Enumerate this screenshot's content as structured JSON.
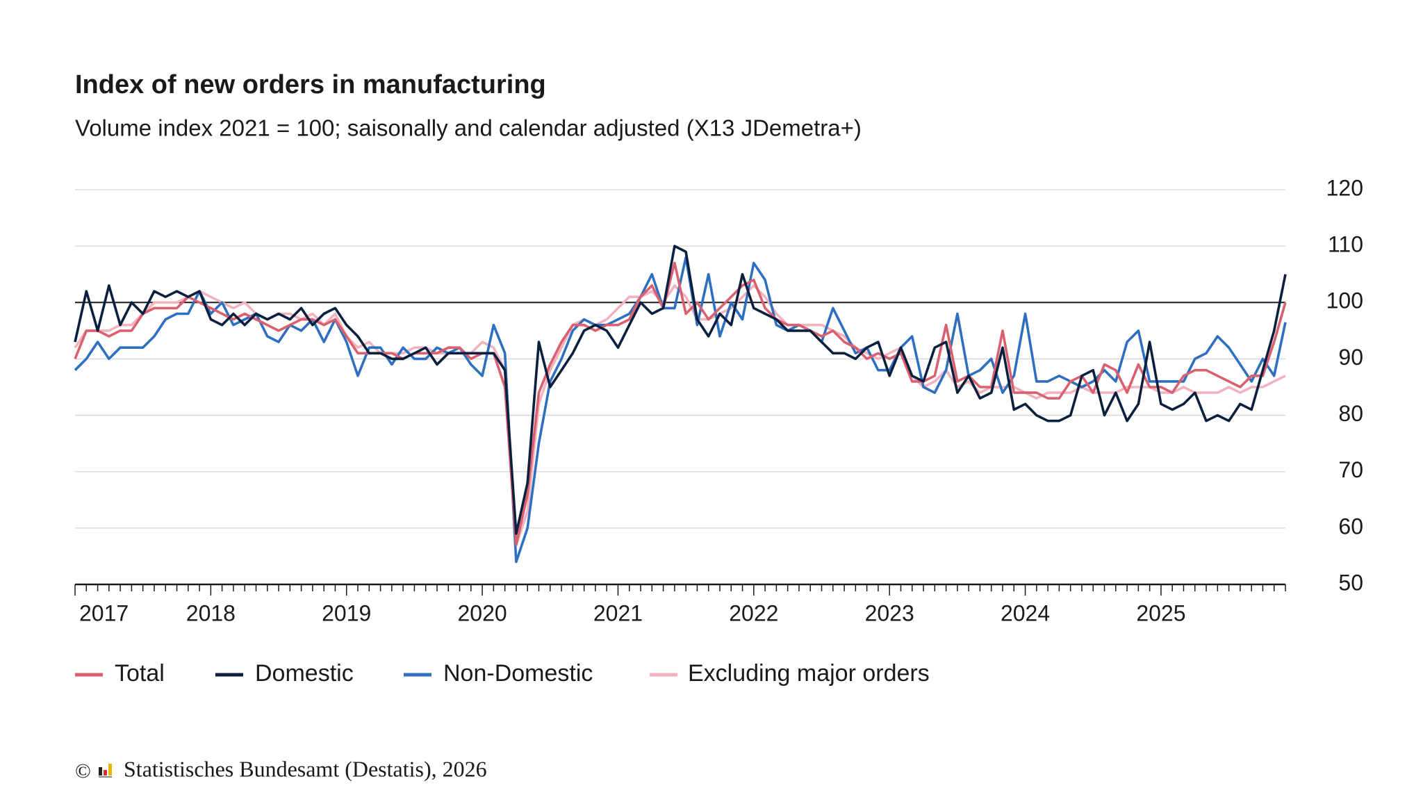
{
  "chart_data": {
    "type": "line",
    "title": "Index of new orders in manufacturing",
    "subtitle": "Volume index 2021 = 100; saisonally and calendar adjusted (X13 JDemetra+)",
    "categories": [
      "2017",
      null,
      null,
      null,
      null,
      null,
      null,
      null,
      null,
      null,
      null,
      null,
      "2018",
      null,
      null,
      null,
      null,
      null,
      null,
      null,
      null,
      null,
      null,
      null,
      "2019",
      null,
      null,
      null,
      null,
      null,
      null,
      null,
      null,
      null,
      null,
      null,
      "2020",
      null,
      null,
      null,
      null,
      null,
      null,
      null,
      null,
      null,
      null,
      null,
      "2021",
      null,
      null,
      null,
      null,
      null,
      null,
      null,
      null,
      null,
      null,
      null,
      "2022",
      null,
      null,
      null,
      null,
      null,
      null,
      null,
      null,
      null,
      null,
      null,
      "2023",
      null,
      null,
      null,
      null,
      null,
      null,
      null,
      null,
      null,
      null,
      null,
      "2024",
      null,
      null,
      null,
      null,
      null,
      null,
      null,
      null,
      null,
      null,
      null,
      "2025",
      null,
      null,
      null,
      null,
      null,
      null,
      null,
      null,
      null,
      null,
      null
    ],
    "series": [
      {
        "name": "Total",
        "color": "#d9606f",
        "values": [
          90,
          95,
          95,
          94,
          95,
          95,
          98,
          99,
          99,
          99,
          101,
          100,
          99,
          98,
          97,
          98,
          97,
          96,
          95,
          96,
          97,
          97,
          96,
          97,
          94,
          91,
          91,
          91,
          91,
          90,
          91,
          91,
          91,
          92,
          92,
          90,
          91,
          91,
          85,
          57,
          66,
          84,
          89,
          93,
          96,
          96,
          95,
          96,
          96,
          97,
          101,
          103,
          99,
          107,
          98,
          100,
          97,
          99,
          101,
          103,
          104,
          99,
          97,
          96,
          96,
          95,
          94,
          95,
          93,
          92,
          90,
          91,
          90,
          91,
          86,
          86,
          87,
          96,
          86,
          87,
          85,
          85,
          95,
          84,
          84,
          84,
          83,
          83,
          86,
          87,
          84,
          89,
          88,
          84,
          89,
          85,
          85,
          84,
          87,
          88,
          88,
          87,
          86,
          85,
          87,
          87,
          93,
          100
        ]
      },
      {
        "name": "Domestic",
        "color": "#0b1f3f",
        "values": [
          93,
          102,
          95,
          103,
          96,
          100,
          98,
          102,
          101,
          102,
          101,
          102,
          97,
          96,
          98,
          96,
          98,
          97,
          98,
          97,
          99,
          96,
          98,
          99,
          96,
          94,
          91,
          91,
          90,
          90,
          91,
          92,
          89,
          91,
          91,
          91,
          91,
          91,
          88,
          59,
          68,
          93,
          85,
          88,
          91,
          95,
          96,
          95,
          92,
          96,
          100,
          98,
          99,
          110,
          109,
          97,
          94,
          98,
          96,
          105,
          99,
          98,
          97,
          95,
          95,
          95,
          93,
          91,
          91,
          90,
          92,
          93,
          87,
          92,
          87,
          86,
          92,
          93,
          84,
          87,
          83,
          84,
          92,
          81,
          82,
          80,
          79,
          79,
          80,
          87,
          88,
          80,
          84,
          79,
          82,
          93,
          82,
          81,
          82,
          84,
          79,
          80,
          79,
          82,
          81,
          88,
          95,
          105
        ]
      },
      {
        "name": "Non-Domestic",
        "color": "#2f6fbf",
        "values": [
          88,
          90,
          93,
          90,
          92,
          92,
          92,
          94,
          97,
          98,
          98,
          102,
          98,
          100,
          96,
          97,
          98,
          94,
          93,
          96,
          95,
          97,
          93,
          97,
          93,
          87,
          92,
          92,
          89,
          92,
          90,
          90,
          92,
          91,
          92,
          89,
          87,
          96,
          91,
          54,
          60,
          75,
          86,
          90,
          95,
          97,
          96,
          96,
          97,
          98,
          101,
          105,
          99,
          99,
          108,
          96,
          105,
          94,
          100,
          97,
          107,
          104,
          96,
          95,
          96,
          95,
          93,
          99,
          95,
          91,
          92,
          88,
          88,
          92,
          94,
          85,
          84,
          88,
          98,
          87,
          88,
          90,
          84,
          87,
          98,
          86,
          86,
          87,
          86,
          85,
          86,
          88,
          86,
          93,
          95,
          86,
          86,
          86,
          86,
          90,
          91,
          94,
          92,
          89,
          86,
          90,
          87,
          96.5
        ]
      },
      {
        "name": "Excluding major orders",
        "color": "#f2b3bf",
        "values": [
          92,
          95,
          95,
          95,
          96,
          96,
          98,
          100,
          100,
          100,
          101,
          102,
          101,
          100,
          99,
          100,
          98,
          97,
          98,
          98,
          97,
          98,
          96,
          98,
          94,
          92,
          93,
          91,
          91,
          91,
          92,
          92,
          91,
          91,
          91,
          91,
          93,
          92,
          88,
          57,
          63,
          82,
          88,
          92,
          96,
          97,
          96,
          97,
          99,
          101,
          101,
          102,
          100,
          103,
          101,
          97,
          97,
          98,
          99,
          101,
          103,
          101,
          98,
          96,
          96,
          96,
          96,
          95,
          94,
          92,
          91,
          90,
          91,
          92,
          87,
          85,
          86,
          88,
          85,
          86,
          84,
          85,
          85,
          85,
          84,
          83,
          84,
          84,
          84,
          85,
          84,
          84,
          84,
          85,
          85,
          85,
          84,
          84,
          85,
          84,
          84,
          84,
          85,
          84,
          85,
          85,
          86,
          87
        ]
      }
    ],
    "ylim": [
      50,
      120
    ],
    "yticks": [
      50,
      60,
      70,
      80,
      90,
      100,
      110,
      120
    ],
    "grid": true,
    "reference_line": 100,
    "copyright": "©",
    "source": "Statistisches Bundesamt (Destatis), 2026"
  }
}
